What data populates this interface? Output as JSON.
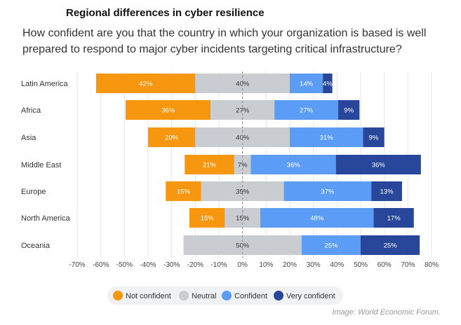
{
  "chart_data": {
    "type": "bar",
    "orientation": "horizontal-diverging-stacked",
    "title": "Regional differences in cyber resilience",
    "subtitle": "How confident are you that the country in which your organization is based is well prepared to respond to major cyber incidents targeting critical infrastructure?",
    "categories": [
      "Latin America",
      "Africa",
      "Asia",
      "Middle East",
      "Europe",
      "North America",
      "Oceania"
    ],
    "series": [
      {
        "name": "Not confident",
        "color": "#F7960F",
        "values": [
          42,
          36,
          20,
          21,
          15,
          15,
          0
        ]
      },
      {
        "name": "Neutral",
        "color": "#C9CCD0",
        "values": [
          40,
          27,
          40,
          7,
          35,
          15,
          50
        ]
      },
      {
        "name": "Confident",
        "color": "#5B9CF6",
        "values": [
          14,
          27,
          31,
          36,
          37,
          48,
          25
        ]
      },
      {
        "name": "Very confident",
        "color": "#28479A",
        "values": [
          4,
          9,
          9,
          36,
          13,
          17,
          25
        ]
      }
    ],
    "xlim": [
      -70,
      80
    ],
    "xticks": [
      "-70%",
      "-60%",
      "-50%",
      "-40%",
      "-30%",
      "-20%",
      "-10%",
      "0%",
      "10%",
      "20%",
      "30%",
      "40%",
      "50%",
      "60%",
      "70%",
      "80%"
    ],
    "grid": true,
    "legend": "bottom-center"
  },
  "source": "Image: World Economic Forum."
}
